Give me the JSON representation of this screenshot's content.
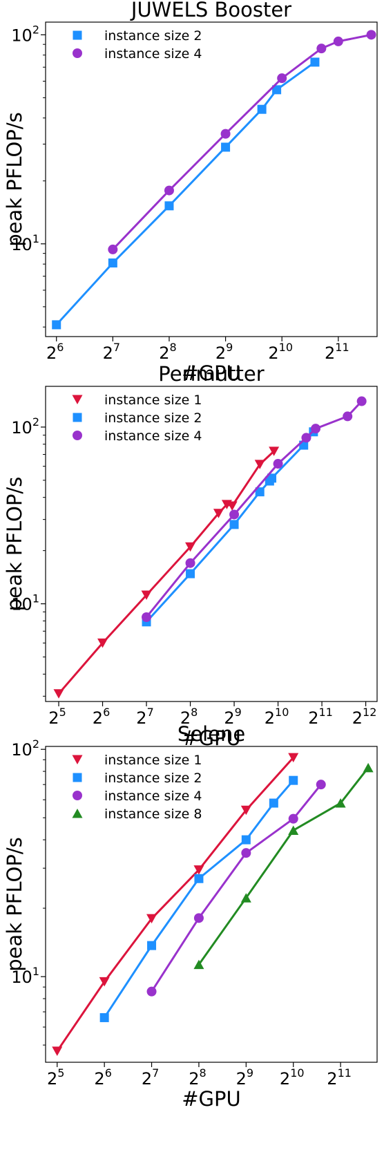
{
  "chart_data": [
    {
      "type": "line",
      "title": "JUWELS Booster",
      "xlabel": "#GPU",
      "ylabel": "peak PFLOP/s",
      "xscale": "log2",
      "yscale": "log10",
      "xlim": [
        56,
        3300
      ],
      "ylim": [
        3.6,
        115
      ],
      "x_tick_base": "2",
      "x_tick_exponents": [
        "6",
        "7",
        "8",
        "9",
        "10",
        "11"
      ],
      "y_tick_base": "10",
      "y_tick_exponents": [
        "1",
        "2"
      ],
      "legend_position": "top-left",
      "grid": false,
      "series": [
        {
          "name": "instance size 2",
          "color": "#1e90ff",
          "marker": "square",
          "x": [
            64,
            128,
            256,
            512,
            800,
            960,
            1536
          ],
          "y": [
            4.1,
            8.1,
            15.2,
            29,
            44,
            54.6,
            74
          ]
        },
        {
          "name": "instance size 4",
          "color": "#9932cc",
          "marker": "circle",
          "x": [
            128,
            256,
            512,
            1024,
            1664,
            2048,
            3072
          ],
          "y": [
            9.4,
            18,
            33.6,
            62,
            86,
            93,
            100
          ]
        }
      ]
    },
    {
      "type": "line",
      "title": "Perlmutter",
      "xlabel": "#GPU",
      "ylabel": "peak PFLOP/s",
      "xscale": "log2",
      "yscale": "log10",
      "xlim": [
        26,
        4900
      ],
      "ylim": [
        2.8,
        170
      ],
      "x_tick_base": "2",
      "x_tick_exponents": [
        "5",
        "6",
        "7",
        "8",
        "9",
        "10",
        "11",
        "12"
      ],
      "y_tick_base": "10",
      "y_tick_exponents": [
        "1",
        "2"
      ],
      "legend_position": "top-left",
      "grid": false,
      "series": [
        {
          "name": "instance size 1",
          "color": "#dc143c",
          "marker": "triangle-down",
          "x": [
            32,
            64,
            128,
            256,
            400,
            456,
            496,
            768,
            960
          ],
          "y": [
            3.1,
            6,
            11.2,
            21,
            32.5,
            36.5,
            35.8,
            61.5,
            73
          ]
        },
        {
          "name": "instance size 2",
          "color": "#1e90ff",
          "marker": "square",
          "x": [
            128,
            256,
            512,
            768,
            896,
            928,
            1536,
            1792
          ],
          "y": [
            7.9,
            14.8,
            28.1,
            43,
            49.5,
            51.4,
            79,
            94
          ]
        },
        {
          "name": "instance size 4",
          "color": "#9932cc",
          "marker": "circle",
          "x": [
            128,
            256,
            512,
            1024,
            1600,
            1856,
            3072,
            3840
          ],
          "y": [
            8.4,
            17,
            32,
            62,
            87,
            98,
            115,
            140
          ]
        }
      ]
    },
    {
      "type": "line",
      "title": "Selene",
      "xlabel": "#GPU",
      "ylabel": "peak PFLOP/s",
      "xscale": "log2",
      "yscale": "log10",
      "xlim": [
        27,
        3500
      ],
      "ylim": [
        4.2,
        103
      ],
      "x_tick_base": "2",
      "x_tick_exponents": [
        "5",
        "6",
        "7",
        "8",
        "9",
        "10",
        "11"
      ],
      "y_tick_base": "10",
      "y_tick_exponents": [
        "1",
        "2"
      ],
      "legend_position": "top-left",
      "grid": false,
      "series": [
        {
          "name": "instance size 1",
          "color": "#dc143c",
          "marker": "triangle-down",
          "x": [
            32,
            64,
            128,
            256,
            512,
            1024
          ],
          "y": [
            4.7,
            9.5,
            18,
            29.5,
            54,
            92
          ]
        },
        {
          "name": "instance size 2",
          "color": "#1e90ff",
          "marker": "square",
          "x": [
            64,
            128,
            256,
            512,
            768,
            1024
          ],
          "y": [
            6.6,
            13.7,
            27,
            40,
            58,
            73
          ]
        },
        {
          "name": "instance size 4",
          "color": "#9932cc",
          "marker": "circle",
          "x": [
            128,
            256,
            512,
            1024,
            1536
          ],
          "y": [
            8.6,
            18.1,
            35,
            49.5,
            70
          ]
        },
        {
          "name": "instance size 8",
          "color": "#228b22",
          "marker": "triangle-up",
          "x": [
            256,
            512,
            1024,
            2048,
            3072
          ],
          "y": [
            11.3,
            22.2,
            44,
            58,
            83
          ]
        }
      ]
    }
  ]
}
